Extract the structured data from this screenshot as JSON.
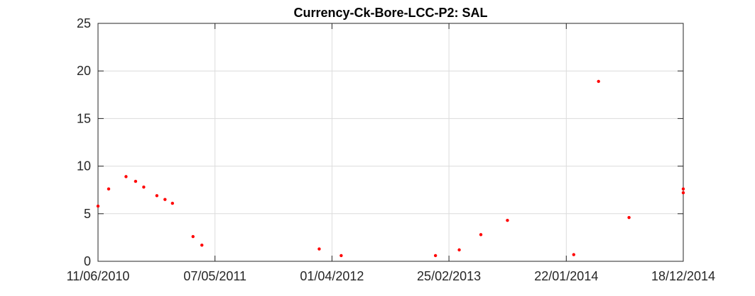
{
  "chart_data": {
    "type": "scatter",
    "title": "Currency-Ck-Bore-LCC-P2: SAL",
    "xlabel": "",
    "ylabel": "",
    "xlim": [
      "2010-06-11",
      "2014-12-18"
    ],
    "ylim": [
      0,
      25
    ],
    "x_ticks": [
      "2010-06-11",
      "2011-05-07",
      "2012-04-01",
      "2013-02-25",
      "2014-01-22",
      "2014-12-18"
    ],
    "x_tick_labels": [
      "11/06/2010",
      "07/05/2011",
      "01/04/2012",
      "25/02/2013",
      "22/01/2014",
      "18/12/2014"
    ],
    "y_ticks": [
      0,
      5,
      10,
      15,
      20,
      25
    ],
    "y_tick_labels": [
      "0",
      "5",
      "10",
      "15",
      "20",
      "25"
    ],
    "grid": true,
    "marker_color": "#ff0000",
    "series": [
      {
        "x": [
          "2010-06-11",
          "2010-07-11",
          "2010-08-29",
          "2010-09-25",
          "2010-10-18",
          "2010-11-24",
          "2010-12-17",
          "2011-01-07",
          "2011-03-06",
          "2011-03-31",
          "2012-02-25",
          "2012-04-27",
          "2013-01-18",
          "2013-03-26",
          "2013-05-26",
          "2013-08-09",
          "2014-02-12",
          "2014-04-23",
          "2014-07-18",
          "2014-12-18",
          "2014-12-18"
        ],
        "y": [
          5.8,
          7.6,
          8.9,
          8.4,
          7.8,
          6.9,
          6.5,
          6.1,
          2.6,
          1.7,
          1.3,
          0.6,
          0.6,
          1.2,
          2.8,
          4.3,
          0.7,
          18.9,
          4.6,
          7.6,
          7.2
        ]
      }
    ]
  }
}
